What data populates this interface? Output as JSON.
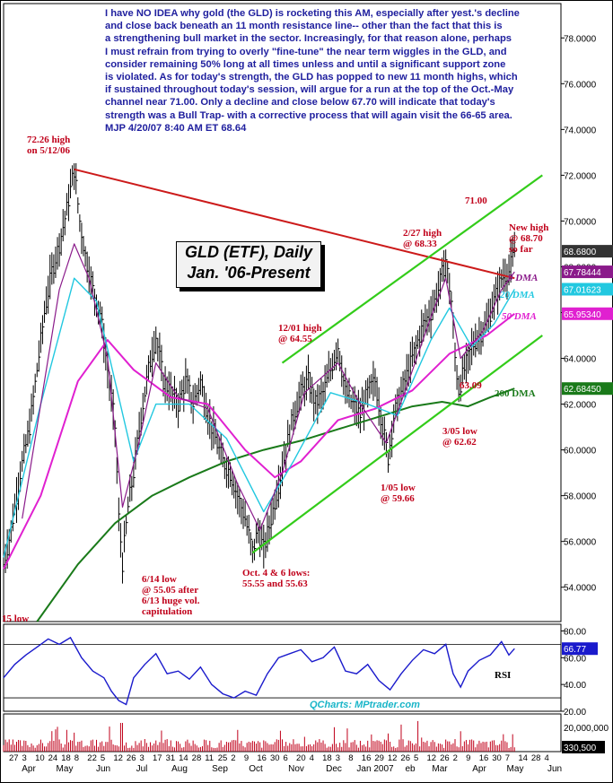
{
  "commentary": "I have NO IDEA why gold (the GLD) is rocketing this AM, especially after yest.'s decline\nand close back beneath an 11 month resistance line-- other than the fact that this is\na strengthening bull market in the sector.  Increasingly, for that reason alone, perhaps\nI must refrain from trying to overly \"fine-tune\" the near term wiggles in the GLD, and\nconsider remaining 50% long at all times unless and until a significant support zone\nis violated. As for today's strength, the GLD has popped to new 11 month highs, which\nif sustained throughout today's session, will argue for a run at the top of the Oct.-May\nchannel near 71.00.  Only a decline and close below 67.70 will indicate that today's\nstrength was a Bull Trap- with a corrective process that will again visit the 66-65 area.\nMJP 4/20/07 8:40 AM ET 68.64",
  "title_line1": "GLD (ETF), Daily",
  "title_line2": "Jan. '06-Present",
  "credit": "QCharts: MPtrader.com",
  "annotations": {
    "high_72": "72.26 high\non 5/12/06",
    "low_6_14": "6/14 low\n@ 55.05 after\n6/13 huge vol.\ncapitulation",
    "low_15": "15 low",
    "oct_lows": "Oct. 4 & 6 lows:\n55.55 and 55.63",
    "high_12_01": "12/01 high\n@ 64.55",
    "low_1_05": "1/05 low\n@ 59.66",
    "high_2_27": "2/27 high\n@ 68.33",
    "low_3_05": "3/05 low\n@ 62.62",
    "level_63": "63.09",
    "level_71": "71.00",
    "new_high": "New high\n@ 68.70\nso far",
    "dma9": "9 DMA",
    "dma20": "20 DMA",
    "dma50": "50 DMA",
    "dma200": "200 DMA",
    "rsi": "RSI"
  },
  "colors": {
    "price_bars": "#000000",
    "trendline": "#cc1a1a",
    "channel": "#33cc1a",
    "dma9": "#8a1a8a",
    "dma20": "#22c8e0",
    "dma50": "#e020d0",
    "dma200": "#1a7a1a",
    "rsi": "#1a1acc",
    "text_blue": "#1f1f9e",
    "text_red": "#c0001a"
  },
  "chart_data": {
    "type": "line",
    "price_axis": {
      "ylim": [
        52.5,
        79.5
      ],
      "ticks": [
        "54.0000",
        "56.0000",
        "58.0000",
        "60.0000",
        "62.0000",
        "64.0000",
        "66.0000",
        "68.0000",
        "70.0000",
        "72.0000",
        "74.0000",
        "76.0000",
        "78.0000"
      ]
    },
    "price_labels": [
      {
        "label": "68.6800",
        "value": 68.68,
        "color": "#333333"
      },
      {
        "label": "67.78444",
        "value": 67.78,
        "color": "#8a1a8a"
      },
      {
        "label": "67.01623",
        "value": 67.02,
        "color": "#22c8e0"
      },
      {
        "label": "65.95340",
        "value": 65.95,
        "color": "#e020d0"
      },
      {
        "label": "62.68450",
        "value": 62.68,
        "color": "#1a7a1a"
      }
    ],
    "rsi_axis": {
      "ylim": [
        20,
        85
      ],
      "ticks": [
        "20.00",
        "40.00",
        "60.00",
        "80.00"
      ]
    },
    "rsi_label": {
      "label": "66.77",
      "value": 66.77
    },
    "volume_axis": {
      "ticks": [
        "20,000,000"
      ]
    },
    "volume_label": {
      "label": "330,500"
    },
    "day_labels": [
      "27",
      "3",
      "10",
      "24",
      "18",
      "8",
      "22",
      "5",
      "12",
      "26",
      "3",
      "17",
      "31",
      "14",
      "28",
      "11",
      "25",
      "2",
      "9",
      "16",
      "30",
      "6",
      "20",
      "4",
      "18",
      "3",
      "8",
      "16",
      "29",
      "12",
      "26",
      "5",
      "12",
      "26",
      "2",
      "9",
      "16",
      "30",
      "7",
      "14",
      "28",
      "4"
    ],
    "month_labels": [
      "Apr",
      "May",
      "Jun",
      "Jul",
      "Aug",
      "Sep",
      "Oct",
      "Nov",
      "Dec",
      "Jan 2007",
      "eb",
      "Mar",
      "Apr",
      "May",
      "Jun"
    ],
    "price_series": [
      {
        "idx": 0,
        "v": 55.0
      },
      {
        "idx": 4,
        "v": 56.5
      },
      {
        "idx": 9,
        "v": 59.0
      },
      {
        "idx": 14,
        "v": 61.0
      },
      {
        "idx": 18,
        "v": 63.5
      },
      {
        "idx": 22,
        "v": 66.0
      },
      {
        "idx": 26,
        "v": 67.8
      },
      {
        "idx": 30,
        "v": 69.0
      },
      {
        "idx": 34,
        "v": 70.5
      },
      {
        "idx": 38,
        "v": 72.26
      },
      {
        "idx": 41,
        "v": 70.0
      },
      {
        "idx": 44,
        "v": 68.5
      },
      {
        "idx": 48,
        "v": 67.0
      },
      {
        "idx": 52,
        "v": 66.0
      },
      {
        "idx": 56,
        "v": 63.5
      },
      {
        "idx": 60,
        "v": 61.0
      },
      {
        "idx": 62,
        "v": 57.0
      },
      {
        "idx": 64,
        "v": 55.05
      },
      {
        "idx": 67,
        "v": 57.5
      },
      {
        "idx": 70,
        "v": 59.0
      },
      {
        "idx": 74,
        "v": 61.5
      },
      {
        "idx": 78,
        "v": 63.5
      },
      {
        "idx": 82,
        "v": 65.0
      },
      {
        "idx": 86,
        "v": 63.0
      },
      {
        "idx": 90,
        "v": 62.5
      },
      {
        "idx": 94,
        "v": 62.0
      },
      {
        "idx": 98,
        "v": 63.0
      },
      {
        "idx": 102,
        "v": 62.0
      },
      {
        "idx": 106,
        "v": 63.0
      },
      {
        "idx": 110,
        "v": 61.5
      },
      {
        "idx": 114,
        "v": 60.5
      },
      {
        "idx": 118,
        "v": 59.5
      },
      {
        "idx": 122,
        "v": 59.0
      },
      {
        "idx": 126,
        "v": 58.0
      },
      {
        "idx": 130,
        "v": 57.0
      },
      {
        "idx": 134,
        "v": 55.55
      },
      {
        "idx": 137,
        "v": 56.5
      },
      {
        "idx": 140,
        "v": 55.63
      },
      {
        "idx": 144,
        "v": 57.0
      },
      {
        "idx": 148,
        "v": 58.5
      },
      {
        "idx": 152,
        "v": 60.0
      },
      {
        "idx": 156,
        "v": 61.5
      },
      {
        "idx": 160,
        "v": 62.5
      },
      {
        "idx": 164,
        "v": 63.0
      },
      {
        "idx": 168,
        "v": 62.0
      },
      {
        "idx": 172,
        "v": 62.5
      },
      {
        "idx": 176,
        "v": 63.5
      },
      {
        "idx": 180,
        "v": 64.55
      },
      {
        "idx": 184,
        "v": 62.5
      },
      {
        "idx": 188,
        "v": 62.0
      },
      {
        "idx": 192,
        "v": 61.5
      },
      {
        "idx": 196,
        "v": 62.5
      },
      {
        "idx": 200,
        "v": 63.0
      },
      {
        "idx": 204,
        "v": 61.0
      },
      {
        "idx": 207,
        "v": 59.66
      },
      {
        "idx": 210,
        "v": 61.5
      },
      {
        "idx": 214,
        "v": 62.5
      },
      {
        "idx": 218,
        "v": 63.5
      },
      {
        "idx": 222,
        "v": 64.5
      },
      {
        "idx": 226,
        "v": 65.5
      },
      {
        "idx": 230,
        "v": 66.0
      },
      {
        "idx": 234,
        "v": 67.0
      },
      {
        "idx": 238,
        "v": 68.33
      },
      {
        "idx": 241,
        "v": 66.5
      },
      {
        "idx": 243,
        "v": 64.0
      },
      {
        "idx": 245,
        "v": 62.62
      },
      {
        "idx": 248,
        "v": 63.5
      },
      {
        "idx": 252,
        "v": 64.5
      },
      {
        "idx": 256,
        "v": 65.0
      },
      {
        "idx": 260,
        "v": 65.5
      },
      {
        "idx": 264,
        "v": 66.5
      },
      {
        "idx": 268,
        "v": 67.5
      },
      {
        "idx": 272,
        "v": 67.8
      },
      {
        "idx": 275,
        "v": 68.68
      }
    ],
    "dma9_series": [
      {
        "idx": 10,
        "v": 57.0
      },
      {
        "idx": 30,
        "v": 67.0
      },
      {
        "idx": 38,
        "v": 69.0
      },
      {
        "idx": 46,
        "v": 67.5
      },
      {
        "idx": 56,
        "v": 64.0
      },
      {
        "idx": 64,
        "v": 57.5
      },
      {
        "idx": 72,
        "v": 60.0
      },
      {
        "idx": 82,
        "v": 63.8
      },
      {
        "idx": 94,
        "v": 62.3
      },
      {
        "idx": 110,
        "v": 61.8
      },
      {
        "idx": 126,
        "v": 58.5
      },
      {
        "idx": 138,
        "v": 56.5
      },
      {
        "idx": 150,
        "v": 59.0
      },
      {
        "idx": 162,
        "v": 62.5
      },
      {
        "idx": 180,
        "v": 63.8
      },
      {
        "idx": 192,
        "v": 62.0
      },
      {
        "idx": 206,
        "v": 60.3
      },
      {
        "idx": 218,
        "v": 63.0
      },
      {
        "idx": 230,
        "v": 65.8
      },
      {
        "idx": 238,
        "v": 67.5
      },
      {
        "idx": 246,
        "v": 64.0
      },
      {
        "idx": 258,
        "v": 65.2
      },
      {
        "idx": 268,
        "v": 67.0
      },
      {
        "idx": 275,
        "v": 67.78
      }
    ],
    "dma20_series": [
      {
        "idx": 0,
        "v": 55.3
      },
      {
        "idx": 20,
        "v": 62.0
      },
      {
        "idx": 38,
        "v": 67.5
      },
      {
        "idx": 50,
        "v": 66.5
      },
      {
        "idx": 60,
        "v": 63.0
      },
      {
        "idx": 70,
        "v": 59.5
      },
      {
        "idx": 82,
        "v": 62.0
      },
      {
        "idx": 100,
        "v": 62.0
      },
      {
        "idx": 120,
        "v": 60.5
      },
      {
        "idx": 140,
        "v": 57.3
      },
      {
        "idx": 156,
        "v": 59.5
      },
      {
        "idx": 176,
        "v": 62.5
      },
      {
        "idx": 196,
        "v": 62.0
      },
      {
        "idx": 212,
        "v": 61.5
      },
      {
        "idx": 230,
        "v": 64.8
      },
      {
        "idx": 240,
        "v": 66.2
      },
      {
        "idx": 252,
        "v": 64.5
      },
      {
        "idx": 264,
        "v": 65.5
      },
      {
        "idx": 275,
        "v": 67.02
      }
    ],
    "dma50_series": [
      {
        "idx": 0,
        "v": 54.8
      },
      {
        "idx": 20,
        "v": 58.0
      },
      {
        "idx": 40,
        "v": 63.0
      },
      {
        "idx": 56,
        "v": 64.8
      },
      {
        "idx": 70,
        "v": 63.5
      },
      {
        "idx": 90,
        "v": 62.3
      },
      {
        "idx": 110,
        "v": 62.0
      },
      {
        "idx": 130,
        "v": 60.0
      },
      {
        "idx": 146,
        "v": 58.8
      },
      {
        "idx": 160,
        "v": 59.5
      },
      {
        "idx": 180,
        "v": 61.3
      },
      {
        "idx": 200,
        "v": 61.8
      },
      {
        "idx": 220,
        "v": 62.6
      },
      {
        "idx": 240,
        "v": 64.2
      },
      {
        "idx": 260,
        "v": 65.0
      },
      {
        "idx": 275,
        "v": 65.95
      }
    ],
    "dma200_series": [
      {
        "idx": 18,
        "v": 52.5
      },
      {
        "idx": 40,
        "v": 55.0
      },
      {
        "idx": 60,
        "v": 56.8
      },
      {
        "idx": 80,
        "v": 58.0
      },
      {
        "idx": 100,
        "v": 58.8
      },
      {
        "idx": 120,
        "v": 59.5
      },
      {
        "idx": 140,
        "v": 60.0
      },
      {
        "idx": 160,
        "v": 60.4
      },
      {
        "idx": 180,
        "v": 60.9
      },
      {
        "idx": 200,
        "v": 61.4
      },
      {
        "idx": 220,
        "v": 61.9
      },
      {
        "idx": 236,
        "v": 62.1
      },
      {
        "idx": 250,
        "v": 61.9
      },
      {
        "idx": 262,
        "v": 62.3
      },
      {
        "idx": 275,
        "v": 62.68
      }
    ],
    "trendline": [
      {
        "idx": 38,
        "v": 72.26
      },
      {
        "idx": 275,
        "v": 67.5
      }
    ],
    "channel_upper": [
      {
        "idx": 150,
        "v": 63.8
      },
      {
        "idx": 290,
        "v": 72.0
      }
    ],
    "channel_lower": [
      {
        "idx": 134,
        "v": 55.5
      },
      {
        "idx": 290,
        "v": 65.0
      }
    ],
    "rsi_series": [
      {
        "idx": 0,
        "v": 45
      },
      {
        "idx": 6,
        "v": 55
      },
      {
        "idx": 12,
        "v": 62
      },
      {
        "idx": 18,
        "v": 68
      },
      {
        "idx": 24,
        "v": 74
      },
      {
        "idx": 30,
        "v": 70
      },
      {
        "idx": 36,
        "v": 75
      },
      {
        "idx": 42,
        "v": 60
      },
      {
        "idx": 48,
        "v": 50
      },
      {
        "idx": 54,
        "v": 45
      },
      {
        "idx": 58,
        "v": 35
      },
      {
        "idx": 62,
        "v": 28
      },
      {
        "idx": 66,
        "v": 25
      },
      {
        "idx": 70,
        "v": 45
      },
      {
        "idx": 76,
        "v": 55
      },
      {
        "idx": 82,
        "v": 63
      },
      {
        "idx": 88,
        "v": 48
      },
      {
        "idx": 94,
        "v": 50
      },
      {
        "idx": 100,
        "v": 44
      },
      {
        "idx": 106,
        "v": 53
      },
      {
        "idx": 112,
        "v": 40
      },
      {
        "idx": 118,
        "v": 33
      },
      {
        "idx": 124,
        "v": 30
      },
      {
        "idx": 130,
        "v": 35
      },
      {
        "idx": 136,
        "v": 32
      },
      {
        "idx": 142,
        "v": 48
      },
      {
        "idx": 148,
        "v": 60
      },
      {
        "idx": 154,
        "v": 63
      },
      {
        "idx": 160,
        "v": 66
      },
      {
        "idx": 166,
        "v": 57
      },
      {
        "idx": 172,
        "v": 60
      },
      {
        "idx": 178,
        "v": 68
      },
      {
        "idx": 184,
        "v": 50
      },
      {
        "idx": 190,
        "v": 48
      },
      {
        "idx": 196,
        "v": 55
      },
      {
        "idx": 202,
        "v": 43
      },
      {
        "idx": 208,
        "v": 36
      },
      {
        "idx": 214,
        "v": 48
      },
      {
        "idx": 220,
        "v": 58
      },
      {
        "idx": 226,
        "v": 66
      },
      {
        "idx": 232,
        "v": 63
      },
      {
        "idx": 238,
        "v": 70
      },
      {
        "idx": 242,
        "v": 48
      },
      {
        "idx": 246,
        "v": 38
      },
      {
        "idx": 250,
        "v": 50
      },
      {
        "idx": 256,
        "v": 58
      },
      {
        "idx": 262,
        "v": 62
      },
      {
        "idx": 268,
        "v": 72
      },
      {
        "idx": 272,
        "v": 62
      },
      {
        "idx": 275,
        "v": 66.77
      }
    ]
  }
}
